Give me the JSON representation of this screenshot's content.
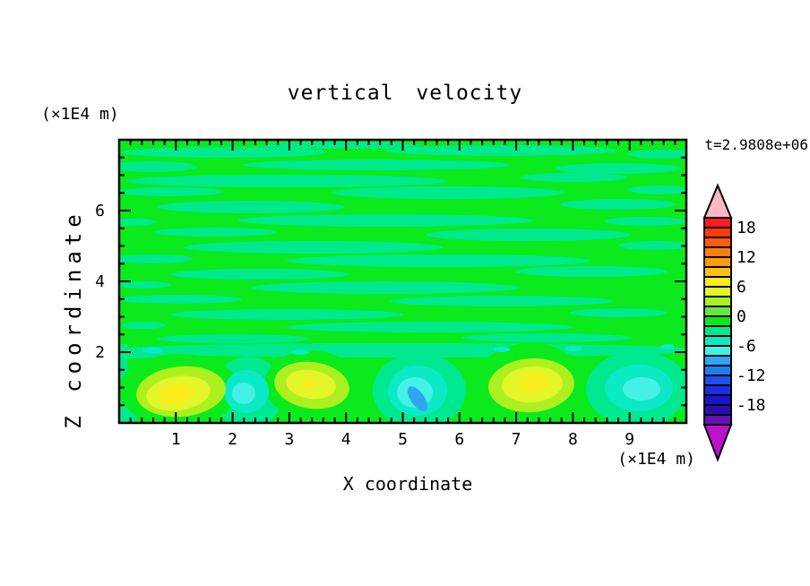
{
  "chart_data": {
    "type": "heatmap",
    "title": "vertical velocity",
    "xlabel": "X coordinate",
    "ylabel": "Z coordinate",
    "axis_units": "(×1E4 m)",
    "time_annotation": "t=2.9808e+06",
    "x_range": [
      0,
      10
    ],
    "z_range": [
      0,
      8
    ],
    "colorbar": {
      "tick_labels": [
        18,
        12,
        6,
        0,
        -6,
        -12,
        -18
      ],
      "level_step": 2,
      "range": [
        -22,
        20
      ],
      "orientation": "vertical-right",
      "pointed_ends": true
    },
    "field_description": {
      "background": "horizontal streaks of near-zero vertical velocity (alternating 0 to +2 green and -2 to 0 spring-green bands) filling the layer z > 2",
      "features": [
        {
          "type": "updraft",
          "x": 1.05,
          "z": 0.9,
          "peak_value": 8
        },
        {
          "type": "downdraft",
          "x": 2.3,
          "z": 0.9,
          "peak_value": -6
        },
        {
          "type": "updraft",
          "x": 3.4,
          "z": 0.95,
          "peak_value": 8
        },
        {
          "type": "downdraft",
          "x": 5.25,
          "z": 0.8,
          "peak_value": -10
        },
        {
          "type": "updraft",
          "x": 7.25,
          "z": 0.95,
          "peak_value": 8
        },
        {
          "type": "downdraft",
          "x": 9.1,
          "z": 0.9,
          "peak_value": -8
        }
      ]
    }
  },
  "figure": {
    "title": "vertical velocity",
    "time_annotation": "t=2.9808e+06",
    "x_axis": {
      "label": "X coordinate",
      "units": "(×1E4 m)",
      "tick_labels": [
        "1",
        "2",
        "3",
        "4",
        "5",
        "6",
        "7",
        "8",
        "9"
      ],
      "major_values": [
        1,
        2,
        3,
        4,
        5,
        6,
        7,
        8,
        9
      ],
      "range": [
        0,
        10
      ],
      "minor_step": 0.2
    },
    "y_axis": {
      "label": "Z coordinate",
      "units": "(×1E4 m)",
      "tick_labels": [
        "2",
        "4",
        "6"
      ],
      "major_values": [
        2,
        4,
        6
      ],
      "range": [
        0,
        8
      ],
      "minor_step": 0.5
    },
    "colorbar": {
      "labels": [
        "18",
        "12",
        "6",
        "0",
        "-6",
        "-12",
        "-18"
      ],
      "label_boundary_index": [
        1,
        4,
        7,
        10,
        13,
        16,
        19
      ],
      "levels": [
        "#f91c23",
        "#f93a0b",
        "#fc5c0e",
        "#fd7f0e",
        "#fd9c0a",
        "#fdc112",
        "#fbed1d",
        "#e2f62a",
        "#adf01f",
        "#63e844",
        "#0bea1c",
        "#00e98f",
        "#0ce9c6",
        "#45f1e6",
        "#2fa4f5",
        "#1e7ef2",
        "#1e4fee",
        "#1b2ee4",
        "#1815d2",
        "#2c0eb0",
        "#6611b3"
      ],
      "above_color": "#f8b8c4",
      "below_color": "#bb13cd"
    },
    "plot_colors": {
      "green": "#0bea1c",
      "spring": "#00e98f",
      "teal": "#0ce9c6",
      "cyan_pale": "#45f1e6",
      "azure": "#2fa4f5",
      "chartreuse": "#adf01f",
      "yellow_green": "#e2f62a",
      "yellow": "#fbed1d",
      "frame": "#000000"
    }
  }
}
